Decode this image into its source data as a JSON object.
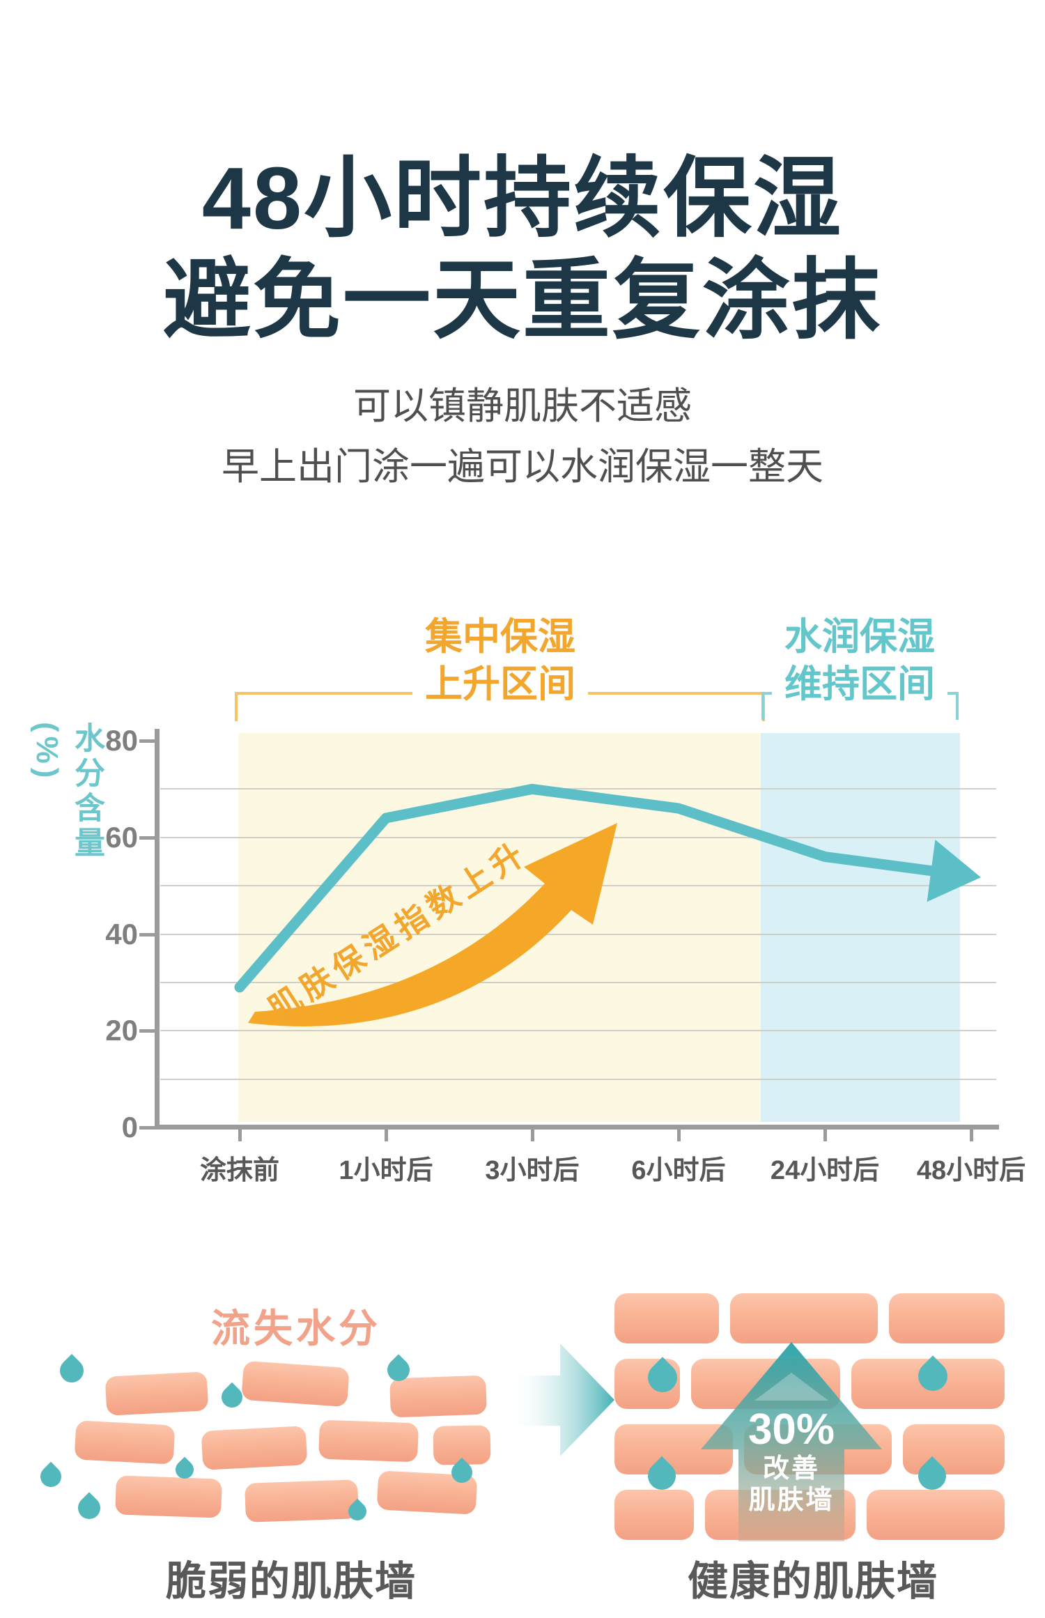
{
  "title": {
    "line1": "48小时持续保湿",
    "line2": "避免一天重复涂抹",
    "color": "#1d3747"
  },
  "subtitle": {
    "line1": "可以镇静肌肤不适感",
    "line2": "早上出门涂一遍可以水润保湿一整天",
    "color": "#4f4f4f"
  },
  "chart_data": {
    "type": "line",
    "categories": [
      "涂抹前",
      "1小时后",
      "3小时后",
      "6小时后",
      "24小时后",
      "48小时后"
    ],
    "values": [
      29,
      64,
      70,
      66,
      56,
      52
    ],
    "ylabel": "水分含量(%)",
    "yticks": [
      0,
      20,
      40,
      60,
      80
    ],
    "ylim": [
      0,
      80
    ],
    "grid": true,
    "line_color": "#5cbfc7",
    "line_ends_with_arrow": true,
    "regions": [
      {
        "label": [
          "集中保湿",
          "上升区间"
        ],
        "text_color": "#f2a62d",
        "bracket_color": "#f5c465",
        "fill": "#fdf8e2",
        "span": [
          "涂抹前",
          "6小时后"
        ]
      },
      {
        "label": [
          "水润保湿",
          "维持区间"
        ],
        "text_color": "#63c6cb",
        "bracket_color": "#8ad3d5",
        "fill": "#d9f1f6",
        "span": [
          "24小时后",
          "48小时后"
        ]
      }
    ],
    "annotation": {
      "text": "肌肤保湿指数上升",
      "color": "#f2a62d"
    }
  },
  "bottom": {
    "left_label": "流失水分",
    "left_caption": "脆弱的肌肤墙",
    "right_caption": "健康的肌肤墙",
    "arrow_percent": "30%",
    "arrow_line2": "改善",
    "arrow_line3": "肌肤墙",
    "brick_color": "#f8b295",
    "drop_color": "#52b8bc",
    "arrow_teal": "#35a6aa"
  }
}
